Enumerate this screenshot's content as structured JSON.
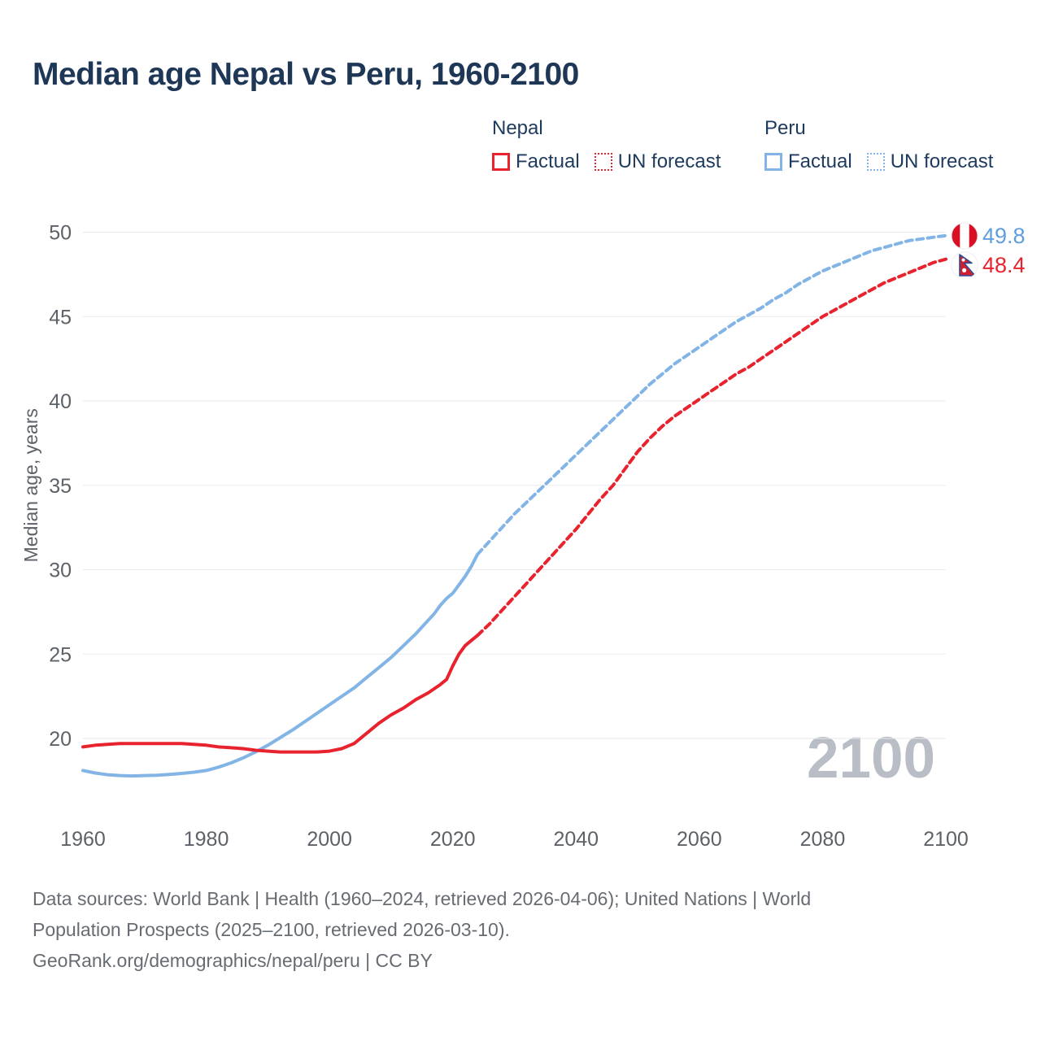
{
  "title": "Median age Nepal vs Peru, 1960-2100",
  "legend": {
    "groups": [
      {
        "country": "Nepal",
        "series_color": "#e8232d",
        "items": [
          {
            "label": "Factual",
            "style": "solid"
          },
          {
            "label": "UN forecast",
            "style": "dotted"
          }
        ]
      },
      {
        "country": "Peru",
        "series_color": "#82b4e6",
        "items": [
          {
            "label": "Factual",
            "style": "solid"
          },
          {
            "label": "UN forecast",
            "style": "dotted"
          }
        ]
      }
    ]
  },
  "end_labels": [
    {
      "country": "Peru",
      "value": "49.8",
      "color": "#5f9fdd"
    },
    {
      "country": "Nepal",
      "value": "48.4",
      "color": "#e8232d"
    }
  ],
  "watermark": "2100",
  "footer": {
    "source_line_1": "Data sources: World Bank | Health (1960–2024, retrieved 2026-04-06); United Nations | World",
    "source_line_2": "Population Prospects (2025–2100, retrieved 2026-03-10).",
    "attribution": "GeoRank.org/demographics/nepal/peru | CC BY"
  },
  "colors": {
    "nepal_red": "#e8232d",
    "peru_blue": "#82b4e6",
    "title_navy": "#1e3756",
    "axis_gray": "#5d6268",
    "gridline": "#e9eaec",
    "watermark_gray": "#b9bec6"
  },
  "chart_data": {
    "type": "line",
    "title": "Median age Nepal vs Peru, 1960-2100",
    "xlabel": "",
    "ylabel": "Median age, years",
    "x_ticks": [
      1960,
      1980,
      2000,
      2020,
      2040,
      2060,
      2080,
      2100
    ],
    "y_ticks": [
      20,
      25,
      30,
      35,
      40,
      45,
      50
    ],
    "xlim": [
      1960,
      2100
    ],
    "ylim": [
      17.3,
      50.6
    ],
    "grid": "horizontal",
    "legend_position": "top",
    "end_values": {
      "peru_2100": 49.8,
      "nepal_2100": 48.4
    },
    "series": [
      {
        "id": "peru-factual",
        "name": "Peru — Factual",
        "color": "#82b4e6",
        "line_style": "solid",
        "x": [
          1960,
          1962,
          1964,
          1966,
          1968,
          1970,
          1972,
          1974,
          1976,
          1978,
          1980,
          1982,
          1984,
          1986,
          1988,
          1990,
          1992,
          1994,
          1996,
          1998,
          2000,
          2002,
          2004,
          2006,
          2008,
          2010,
          2012,
          2014,
          2016,
          2017,
          2018,
          2019,
          2020,
          2021,
          2022,
          2023,
          2024
        ],
        "values": [
          18.1,
          17.95,
          17.85,
          17.8,
          17.78,
          17.8,
          17.82,
          17.87,
          17.93,
          18.0,
          18.1,
          18.3,
          18.55,
          18.85,
          19.2,
          19.6,
          20.05,
          20.5,
          21.0,
          21.5,
          22.0,
          22.5,
          23.0,
          23.6,
          24.2,
          24.8,
          25.5,
          26.2,
          27.0,
          27.4,
          27.9,
          28.3,
          28.6,
          29.1,
          29.6,
          30.2,
          30.9
        ]
      },
      {
        "id": "peru-forecast",
        "name": "Peru — UN forecast",
        "color": "#82b4e6",
        "line_style": "dashed",
        "x": [
          2024,
          2026,
          2028,
          2030,
          2032,
          2034,
          2036,
          2038,
          2040,
          2042,
          2044,
          2046,
          2048,
          2050,
          2052,
          2054,
          2056,
          2058,
          2060,
          2062,
          2064,
          2066,
          2068,
          2070,
          2072,
          2074,
          2076,
          2078,
          2080,
          2082,
          2084,
          2086,
          2088,
          2090,
          2092,
          2094,
          2096,
          2098,
          2100
        ],
        "values": [
          30.9,
          31.7,
          32.5,
          33.3,
          34.0,
          34.7,
          35.4,
          36.1,
          36.8,
          37.5,
          38.2,
          38.9,
          39.6,
          40.3,
          41.0,
          41.6,
          42.2,
          42.7,
          43.2,
          43.7,
          44.2,
          44.7,
          45.1,
          45.5,
          46.0,
          46.4,
          46.9,
          47.3,
          47.7,
          48.0,
          48.3,
          48.6,
          48.9,
          49.1,
          49.3,
          49.5,
          49.6,
          49.7,
          49.8
        ]
      },
      {
        "id": "nepal-factual",
        "name": "Nepal — Factual",
        "color": "#e8232d",
        "line_style": "solid",
        "x": [
          1960,
          1962,
          1964,
          1966,
          1968,
          1970,
          1972,
          1974,
          1976,
          1978,
          1980,
          1982,
          1984,
          1986,
          1988,
          1990,
          1992,
          1994,
          1996,
          1998,
          2000,
          2002,
          2004,
          2006,
          2008,
          2010,
          2012,
          2014,
          2016,
          2018,
          2019,
          2020,
          2021,
          2022,
          2023,
          2024
        ],
        "values": [
          19.5,
          19.6,
          19.65,
          19.7,
          19.7,
          19.7,
          19.7,
          19.7,
          19.7,
          19.65,
          19.6,
          19.5,
          19.45,
          19.4,
          19.3,
          19.25,
          19.2,
          19.2,
          19.2,
          19.2,
          19.25,
          19.4,
          19.7,
          20.3,
          20.9,
          21.4,
          21.8,
          22.3,
          22.7,
          23.2,
          23.5,
          24.3,
          25.0,
          25.5,
          25.8,
          26.1
        ]
      },
      {
        "id": "nepal-forecast",
        "name": "Nepal — UN forecast",
        "color": "#e8232d",
        "line_style": "dashed",
        "x": [
          2024,
          2026,
          2028,
          2030,
          2032,
          2034,
          2036,
          2038,
          2040,
          2042,
          2044,
          2046,
          2048,
          2050,
          2052,
          2054,
          2056,
          2058,
          2060,
          2062,
          2064,
          2066,
          2068,
          2070,
          2072,
          2074,
          2076,
          2078,
          2080,
          2082,
          2084,
          2086,
          2088,
          2090,
          2092,
          2094,
          2096,
          2098,
          2100
        ],
        "values": [
          26.1,
          26.8,
          27.6,
          28.4,
          29.2,
          30.0,
          30.8,
          31.6,
          32.4,
          33.3,
          34.2,
          35.0,
          36.0,
          37.0,
          37.8,
          38.5,
          39.1,
          39.6,
          40.1,
          40.6,
          41.1,
          41.6,
          42.0,
          42.5,
          43.0,
          43.5,
          44.0,
          44.5,
          45.0,
          45.4,
          45.8,
          46.2,
          46.6,
          47.0,
          47.3,
          47.6,
          47.9,
          48.2,
          48.4
        ]
      }
    ]
  }
}
